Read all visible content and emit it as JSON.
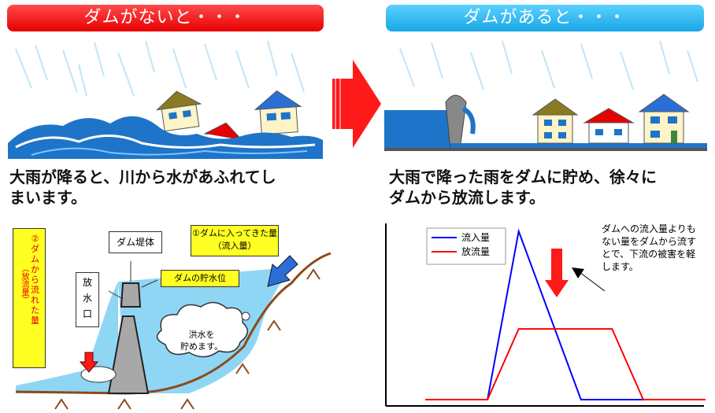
{
  "left_panel": {
    "title": "ダムがないと・・・",
    "caption_line1": "大雨が降ると、川から水があふれてし",
    "caption_line2": "まいます。"
  },
  "right_panel": {
    "title": "ダムがあると・・・",
    "caption_line1": "大雨で降った雨をダムに貯め、徐々に",
    "caption_line2": "ダムから放流します。"
  },
  "dam_diagram": {
    "dam_body_label": "ダム堤体",
    "inflow_label_line1": "①ダムに入ってきた量",
    "inflow_label_line2": "（流入量）",
    "water_level_label": "ダムの貯水位",
    "outlet_label_chars": [
      "放",
      "水",
      "口"
    ],
    "outflow_label_chars": [
      "②",
      "ダ",
      "ム",
      "か",
      "ら",
      "流",
      "れ",
      "た",
      "量"
    ],
    "outflow_paren_label": "（放流量）",
    "cloud_label_line1": "洪水を",
    "cloud_label_line2": "貯めます。"
  },
  "chart_data": {
    "type": "line",
    "x": [
      0,
      1,
      2,
      3,
      4,
      5,
      6,
      7,
      8,
      9
    ],
    "series": [
      {
        "name": "流入量",
        "values": [
          0,
          0,
          0,
          10,
          5,
          0,
          0,
          0,
          0,
          0
        ],
        "color": "#0000ff"
      },
      {
        "name": "放流量",
        "values": [
          0,
          0,
          0,
          4.2,
          4.2,
          4.2,
          4.2,
          0,
          0,
          0
        ],
        "color": "#ff0000"
      }
    ],
    "legend_position": "top-left",
    "annotation_lines": [
      "ダムへの流入量よりも",
      "ない量をダムから流す",
      "とで、下流の被害を軽",
      "します。"
    ]
  },
  "colors": {
    "red_banner": "#e60000",
    "blue_banner": "#1aa7e6",
    "flood_water": "#1e74c8",
    "reservoir_water": "#8fd6f5",
    "arrow_red": "#ff1a1a",
    "highlight_yellow": "#ffff22"
  }
}
